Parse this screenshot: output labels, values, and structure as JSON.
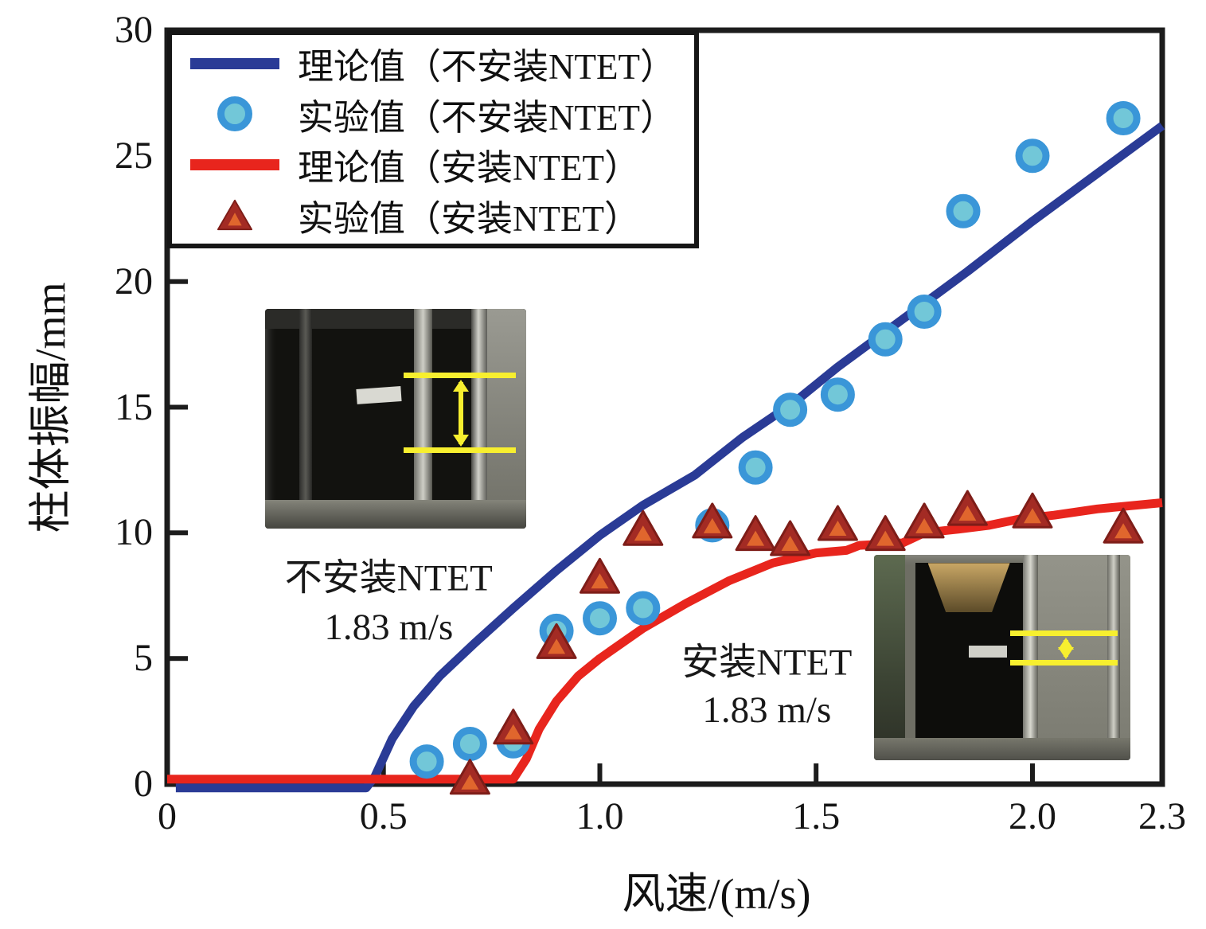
{
  "chart_data": {
    "type": "line",
    "title": "",
    "xlabel": "风速/(m/s)",
    "ylabel": "柱体振幅/mm",
    "xlim": [
      0,
      2.3
    ],
    "ylim": [
      0,
      30
    ],
    "xticks": [
      0,
      0.5,
      1.0,
      1.5,
      2.0,
      2.3
    ],
    "xtick_labels": [
      "0",
      "0.5",
      "1.0",
      "1.5",
      "2.0",
      "2.3"
    ],
    "yticks": [
      0,
      5,
      10,
      15,
      20,
      25,
      30
    ],
    "ytick_labels": [
      "0",
      "5",
      "10",
      "15",
      "20",
      "25",
      "30"
    ],
    "grid": false,
    "legend_position": "top-left-inside",
    "series": [
      {
        "id": "theory-line-without-ntet",
        "name": "理论值（不安装NTET）",
        "type": "line",
        "color": "#2a3b96",
        "points": [
          [
            0.02,
            -0.15
          ],
          [
            0.46,
            -0.15
          ],
          [
            0.48,
            0.3
          ],
          [
            0.52,
            1.8
          ],
          [
            0.57,
            3.1
          ],
          [
            0.63,
            4.3
          ],
          [
            0.71,
            5.6
          ],
          [
            0.8,
            7.0
          ],
          [
            0.9,
            8.5
          ],
          [
            1.0,
            9.9
          ],
          [
            1.1,
            11.1
          ],
          [
            1.22,
            12.3
          ],
          [
            1.33,
            13.8
          ],
          [
            1.45,
            15.2
          ],
          [
            1.55,
            16.6
          ],
          [
            1.7,
            18.5
          ],
          [
            1.85,
            20.4
          ],
          [
            2.0,
            22.4
          ],
          [
            2.15,
            24.3
          ],
          [
            2.3,
            26.2
          ]
        ]
      },
      {
        "id": "experiment-circles-without-ntet",
        "name": "实验值（不安装NTET）",
        "type": "scatter-circle",
        "fill": "#72c7d8",
        "stroke": "#3a96d8",
        "points": [
          [
            0.6,
            0.9
          ],
          [
            0.7,
            1.6
          ],
          [
            0.8,
            1.7
          ],
          [
            0.9,
            6.1
          ],
          [
            1.0,
            6.6
          ],
          [
            1.1,
            7.0
          ],
          [
            1.26,
            10.3
          ],
          [
            1.36,
            12.6
          ],
          [
            1.44,
            14.9
          ],
          [
            1.55,
            15.5
          ],
          [
            1.66,
            17.7
          ],
          [
            1.75,
            18.8
          ],
          [
            1.84,
            22.8
          ],
          [
            2.0,
            25.0
          ],
          [
            2.21,
            26.5
          ]
        ]
      },
      {
        "id": "theory-line-with-ntet",
        "name": "理论值（安装NTET）",
        "type": "line",
        "color": "#e8251d",
        "points": [
          [
            0.0,
            0.2
          ],
          [
            0.8,
            0.2
          ],
          [
            0.83,
            1.0
          ],
          [
            0.86,
            2.2
          ],
          [
            0.9,
            3.3
          ],
          [
            0.95,
            4.3
          ],
          [
            1.0,
            5.0
          ],
          [
            1.1,
            6.2
          ],
          [
            1.2,
            7.2
          ],
          [
            1.3,
            8.1
          ],
          [
            1.4,
            8.8
          ],
          [
            1.5,
            9.2
          ],
          [
            1.57,
            9.3
          ],
          [
            1.6,
            9.5
          ],
          [
            1.7,
            9.6
          ],
          [
            1.75,
            10.0
          ],
          [
            1.83,
            10.15
          ],
          [
            1.9,
            10.3
          ],
          [
            1.97,
            10.55
          ],
          [
            2.05,
            10.7
          ],
          [
            2.15,
            10.95
          ],
          [
            2.3,
            11.2
          ]
        ]
      },
      {
        "id": "experiment-triangles-with-ntet",
        "name": "实验值（安装NTET）",
        "type": "scatter-triangle",
        "fill": "#a32b24",
        "stroke": "#7e1d18",
        "inner": "#e0662d",
        "points": [
          [
            0.7,
            0.1
          ],
          [
            0.8,
            2.1
          ],
          [
            0.9,
            5.5
          ],
          [
            1.0,
            8.1
          ],
          [
            1.1,
            10.0
          ],
          [
            1.26,
            10.3
          ],
          [
            1.36,
            9.8
          ],
          [
            1.44,
            9.6
          ],
          [
            1.55,
            10.2
          ],
          [
            1.66,
            9.8
          ],
          [
            1.75,
            10.3
          ],
          [
            1.85,
            10.8
          ],
          [
            2.0,
            10.7
          ],
          [
            2.21,
            10.1
          ]
        ]
      }
    ],
    "annotations": [
      {
        "text": "不安装NTET",
        "x": 0.512,
        "y": 8.35
      },
      {
        "text": "1.83 m/s",
        "x": 0.512,
        "y": 6.25
      },
      {
        "text": "安装NTET",
        "x": 1.386,
        "y": 5.0
      },
      {
        "text": "1.83 m/s",
        "x": 1.386,
        "y": 2.95
      }
    ]
  },
  "colors": {
    "axis": "#1c1c1c",
    "background": "#ffffff",
    "amplitude_marker_yellow": "#f7ef2f"
  },
  "insets": [
    {
      "id": "photo-without-ntet",
      "content": "experiment photo, cylinder amplitude marked by two yellow lines with double arrow"
    },
    {
      "id": "photo-with-ntet",
      "content": "experiment photo, cylinder amplitude marked by two yellow lines with double arrow"
    }
  ]
}
